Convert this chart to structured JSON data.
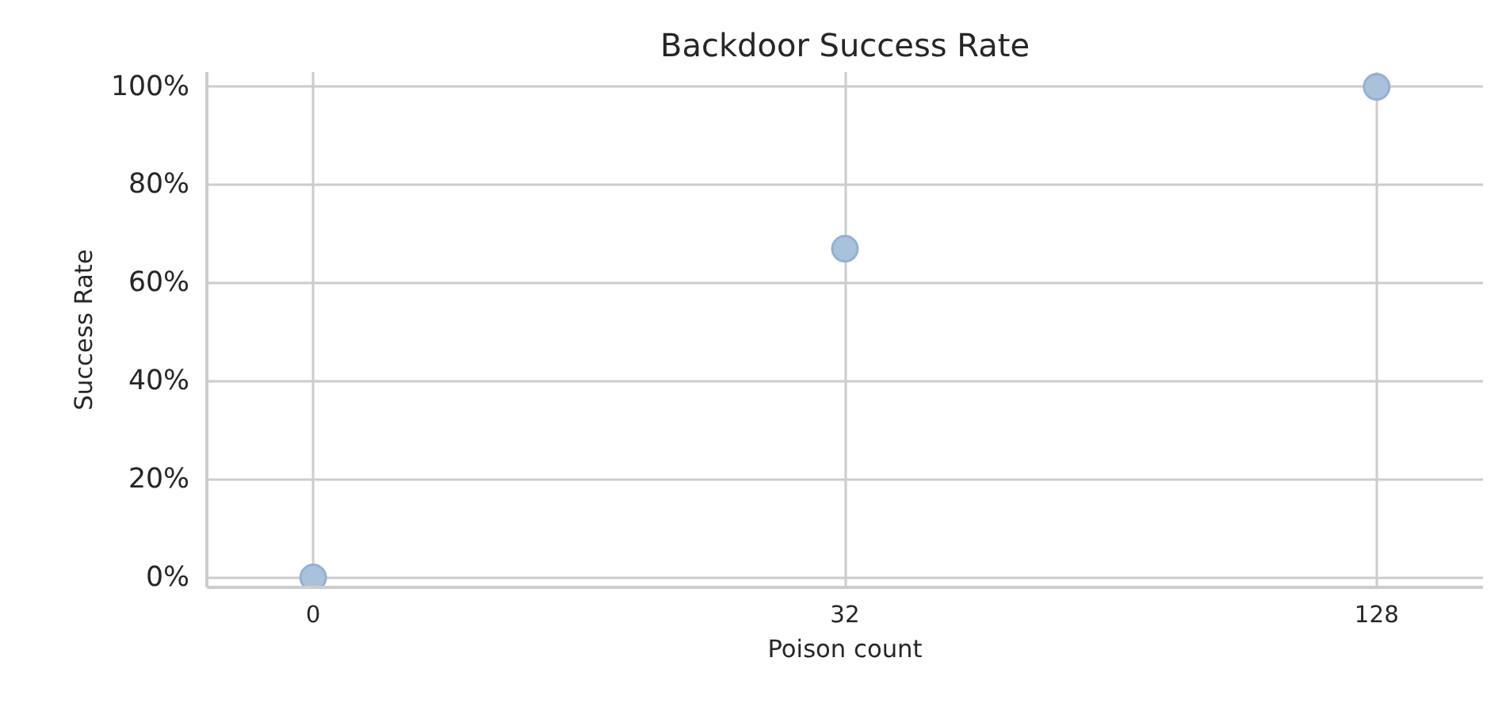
{
  "chart_data": {
    "type": "scatter",
    "title": "Backdoor Success Rate",
    "xlabel": "Poison count",
    "ylabel": "Success Rate",
    "categories": [
      "0",
      "32",
      "128"
    ],
    "series": [
      {
        "color": "#aac1dc",
        "values": [
          0,
          67,
          100
        ]
      }
    ],
    "ylim": [
      -2,
      103
    ],
    "yticks": [
      {
        "value": 0,
        "label": "0%"
      },
      {
        "value": 20,
        "label": "20%"
      },
      {
        "value": 40,
        "label": "40%"
      },
      {
        "value": 60,
        "label": "60%"
      },
      {
        "value": 80,
        "label": "80%"
      },
      {
        "value": 100,
        "label": "100%"
      }
    ],
    "grid": true,
    "marker": "circle"
  }
}
